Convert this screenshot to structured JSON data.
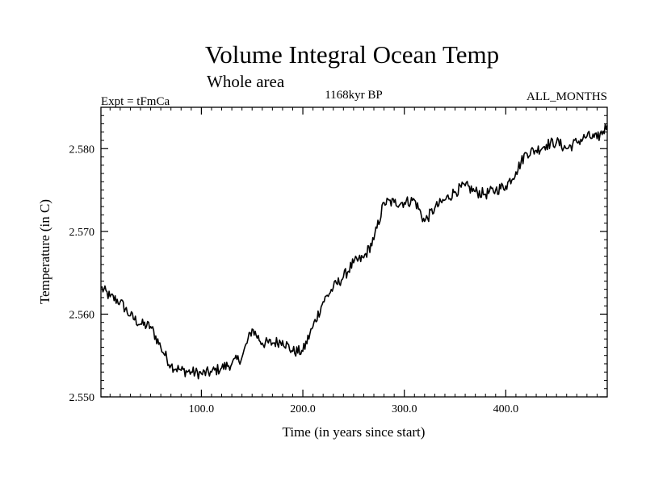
{
  "chart_data": {
    "type": "line",
    "title": "Volume Integral Ocean Temp",
    "subtitle": "Whole area",
    "experiment": "Expt = tFmCa",
    "period": "1168kyr BP",
    "months": "ALL_MONTHS",
    "xlabel": "Time (in years since start)",
    "ylabel": "Temperature (in C)",
    "xlim": [
      1,
      500
    ],
    "ylim": [
      2.55,
      2.585
    ],
    "x_ticks": [
      100,
      200,
      300,
      400
    ],
    "x_tick_labels": [
      "100.0",
      "200.0",
      "300.0",
      "400.0"
    ],
    "y_ticks": [
      2.55,
      2.56,
      2.57,
      2.58
    ],
    "y_tick_labels": [
      "2.550",
      "2.560",
      "2.570",
      "2.580"
    ],
    "grid": false,
    "series": [
      {
        "name": "Volume Integral Ocean Temp",
        "x": [
          1,
          10,
          20,
          30,
          40,
          50,
          60,
          70,
          80,
          90,
          100,
          110,
          120,
          130,
          140,
          150,
          160,
          170,
          180,
          190,
          200,
          210,
          220,
          230,
          240,
          250,
          260,
          270,
          280,
          290,
          300,
          310,
          320,
          330,
          340,
          350,
          360,
          370,
          380,
          390,
          400,
          410,
          420,
          430,
          440,
          450,
          460,
          470,
          480,
          490,
          500
        ],
        "values": [
          2.5632,
          2.5621,
          2.5615,
          2.5598,
          2.5588,
          2.5585,
          2.556,
          2.5538,
          2.5532,
          2.553,
          2.5528,
          2.553,
          2.5535,
          2.554,
          2.5548,
          2.5582,
          2.5565,
          2.5565,
          2.5568,
          2.5555,
          2.5555,
          2.5585,
          2.5615,
          2.5632,
          2.5645,
          2.5662,
          2.5668,
          2.569,
          2.5735,
          2.5735,
          2.5735,
          2.5738,
          2.5712,
          2.5728,
          2.5738,
          2.5748,
          2.5755,
          2.5748,
          2.5745,
          2.575,
          2.5755,
          2.5772,
          2.5795,
          2.5798,
          2.5805,
          2.5808,
          2.58,
          2.5808,
          2.5815,
          2.5812,
          2.5828
        ]
      }
    ]
  }
}
